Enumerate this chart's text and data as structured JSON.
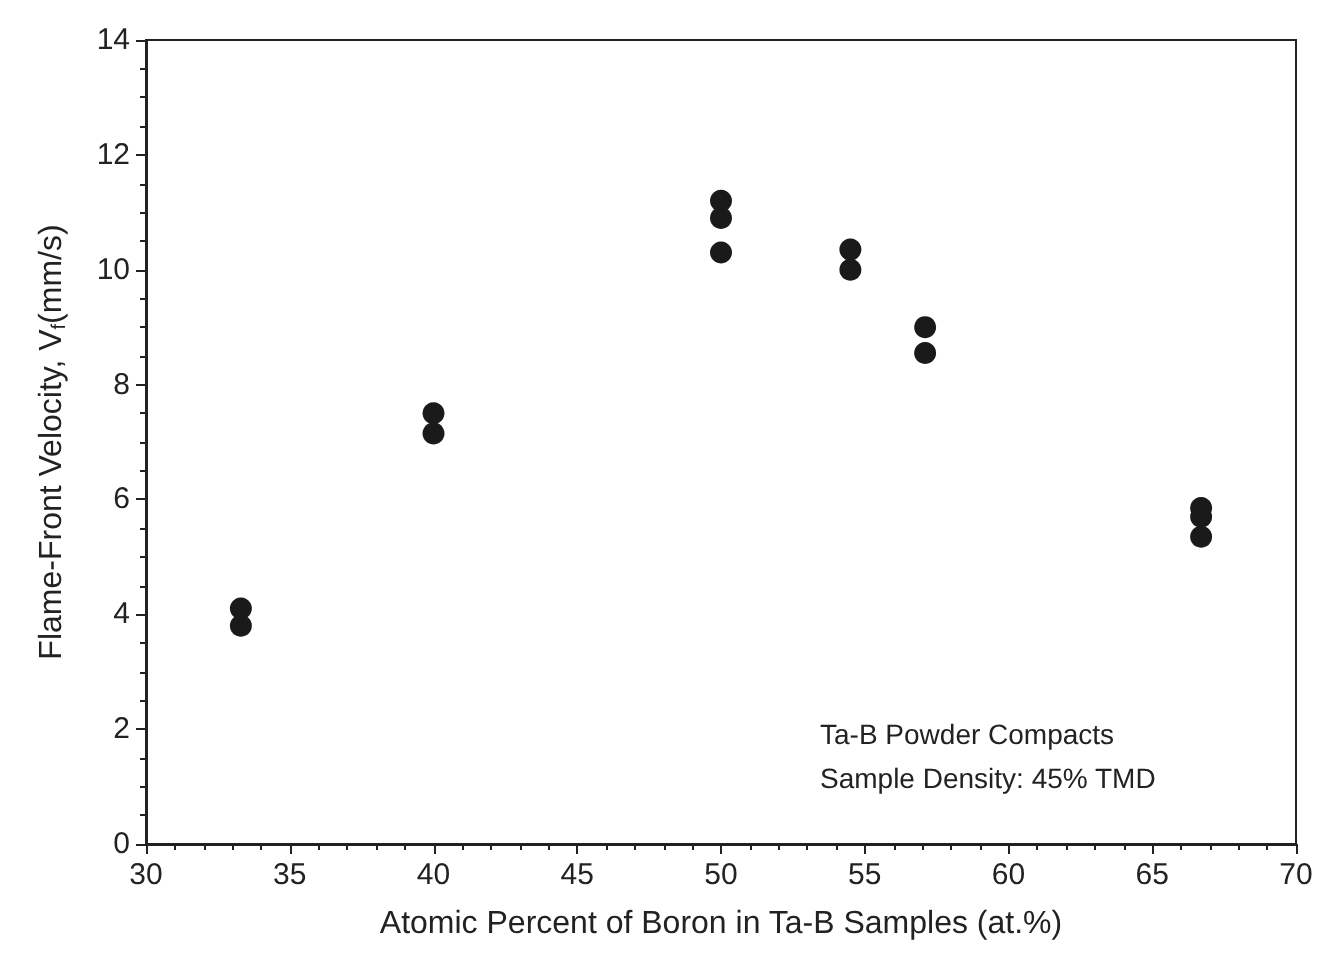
{
  "chart_data": {
    "type": "scatter",
    "xlabel": "Atomic Percent of Boron in Ta-B Samples (at.%)",
    "ylabel": "Flame-Front Velocity, V$_{f}$(mm/s)",
    "x": [
      33.3,
      33.3,
      40,
      40,
      50,
      50,
      50,
      54.5,
      54.5,
      57.1,
      57.1,
      66.7,
      66.7,
      66.7
    ],
    "series": [
      {
        "color": "#1a1a1a",
        "values": [
          4.1,
          3.8,
          7.5,
          7.15,
          11.2,
          10.9,
          10.3,
          10.35,
          10.0,
          9.0,
          8.55,
          5.85,
          5.7,
          5.35
        ]
      }
    ],
    "xlim": [
      30,
      70
    ],
    "xticks": [
      30,
      35,
      40,
      45,
      50,
      55,
      60,
      65,
      70
    ],
    "ylim": [
      0,
      14
    ],
    "yticks": [
      0,
      2,
      4,
      6,
      8,
      10,
      12,
      14
    ],
    "annotations": [
      "Ta-B Powder Compacts",
      "Sample Density: 45% TMD"
    ],
    "marker": "circle",
    "grid": false
  }
}
